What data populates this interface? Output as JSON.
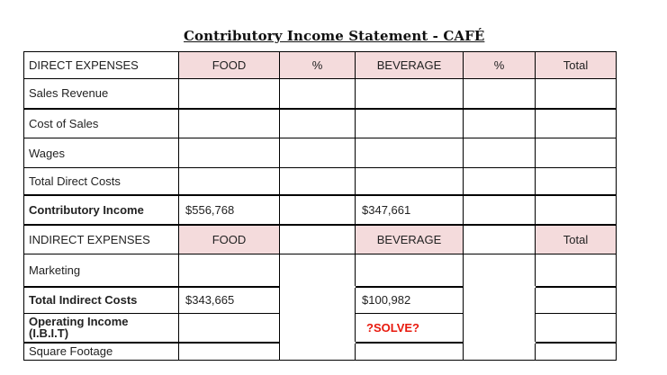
{
  "title": "Contributory Income Statement - CAFÉ",
  "direct_header": {
    "label": "DIRECT EXPENSES",
    "food": "FOOD",
    "pct1": "%",
    "beverage": "BEVERAGE",
    "pct2": "%",
    "total": "Total"
  },
  "rows": {
    "sales_revenue": "Sales Revenue",
    "cost_of_sales": "Cost of Sales",
    "wages": "Wages",
    "total_direct_costs": "Total Direct Costs"
  },
  "contributory_income": {
    "label": "Contributory Income",
    "food": "$556,768",
    "beverage": "$347,661"
  },
  "indirect_header": {
    "label": "INDIRECT EXPENSES",
    "food": "FOOD",
    "beverage": "BEVERAGE",
    "total": "Total"
  },
  "marketing": {
    "label": "Marketing"
  },
  "total_indirect_costs": {
    "label": "Total Indirect Costs",
    "food": "$343,665",
    "beverage": "$100,982"
  },
  "operating_income": {
    "label_line1": "Operating Income",
    "label_line2": "(I.B.I.T)",
    "beverage": "?SOLVE?"
  },
  "square_footage": {
    "label": "Square Footage"
  }
}
